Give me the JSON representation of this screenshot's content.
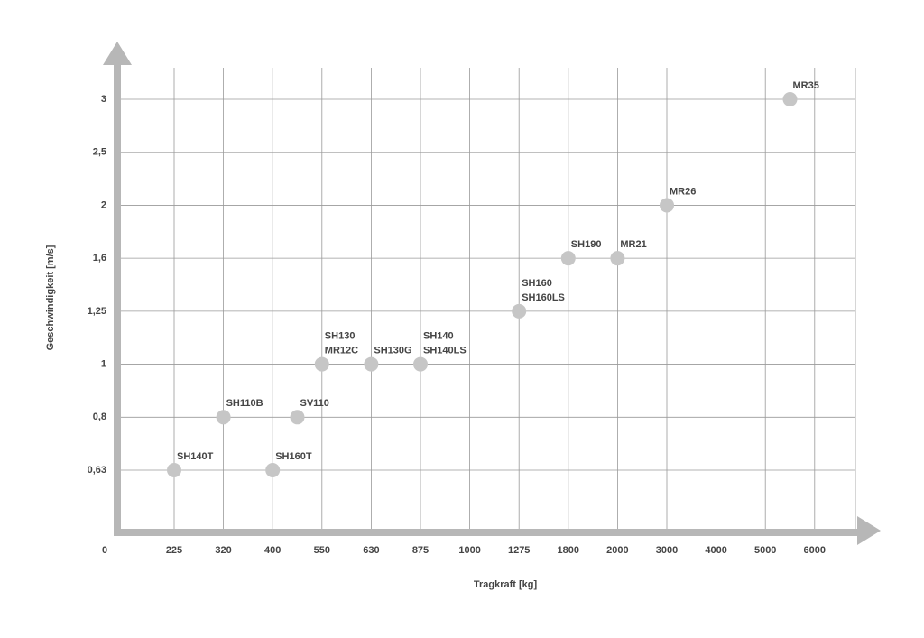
{
  "chart_data": {
    "type": "scatter",
    "x_label": "Tragkraft [kg]",
    "y_label": "Geschwindigkeit [m/s]",
    "xlim": [
      0,
      6000
    ],
    "ylim": [
      0,
      3
    ],
    "xticks": [
      0,
      225,
      320,
      400,
      550,
      630,
      875,
      1000,
      1275,
      1800,
      2000,
      3000,
      4000,
      5000,
      6000
    ],
    "yticks": [
      {
        "value": 0.63,
        "label": "0,63"
      },
      {
        "value": 0.8,
        "label": "0,8"
      },
      1,
      {
        "value": 1.25,
        "label": "1,25"
      },
      {
        "value": 1.6,
        "label": "1,6"
      },
      2,
      {
        "value": 2.5,
        "label": "2,5"
      },
      3
    ],
    "grid": true,
    "series": [
      {
        "color": "#c6c6c6",
        "x": [
          225,
          320,
          400,
          475,
          550,
          630,
          875,
          1275,
          1800,
          2000,
          3000,
          5500
        ],
        "values": [
          0.63,
          0.8,
          0.63,
          0.8,
          1,
          1,
          1,
          1.25,
          1.6,
          1.6,
          2,
          3
        ],
        "labels": [
          [
            "SH140T"
          ],
          [
            "SH110B"
          ],
          [
            "SH160T"
          ],
          [
            "SV110"
          ],
          [
            "SH130",
            "MR12C"
          ],
          [
            "SH130G"
          ],
          [
            "SH140",
            "SH140LS"
          ],
          [
            "SH160",
            "SH160LS"
          ],
          [
            "SH190"
          ],
          [
            "MR21"
          ],
          [
            "MR26"
          ],
          [
            "MR35"
          ]
        ]
      }
    ]
  }
}
